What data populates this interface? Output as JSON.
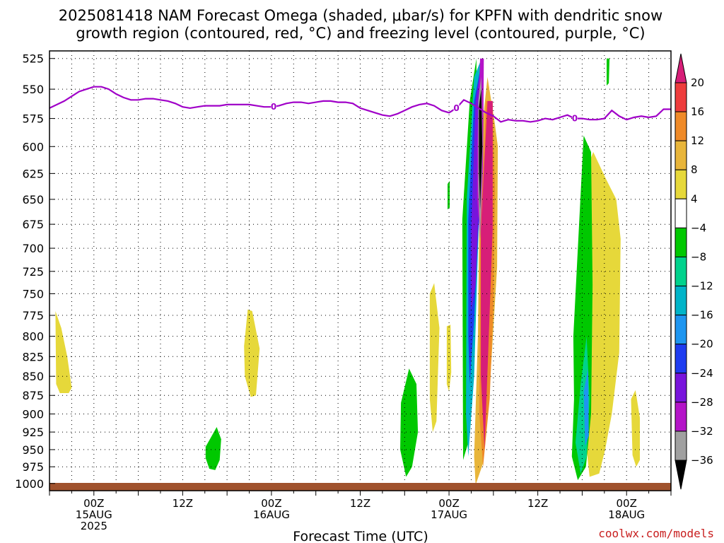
{
  "header": {
    "title_line1": "2025081418 NAM Forecast Omega (shaded, μbar/s) for KPFN with dendritic snow",
    "title_line2": "growth region (contoured, red, °C) and freezing level (contoured, purple, °C)"
  },
  "footer": {
    "watermark": "coolwx.com/models"
  },
  "chart_data": {
    "type": "heatmap",
    "title": "2025081418 NAM Forecast Omega (shaded, μbar/s) for KPFN with dendritic snow growth region (contoured, red, °C) and freezing level (contoured, purple, °C)",
    "xlabel": "Forecast Time (UTC)",
    "ylabel": "",
    "x_unit": "hours since 2025-08-14 18Z",
    "xlim": [
      0,
      84
    ],
    "y_ticks": [
      525,
      550,
      575,
      600,
      625,
      650,
      675,
      700,
      725,
      750,
      775,
      800,
      825,
      850,
      875,
      900,
      925,
      950,
      975,
      1000
    ],
    "ylim": [
      1000,
      525
    ],
    "x_ticks": [
      {
        "x": 6,
        "line1": "00Z",
        "line2": "15AUG",
        "line3": "2025"
      },
      {
        "x": 18,
        "line1": "12Z",
        "line2": "",
        "line3": ""
      },
      {
        "x": 30,
        "line1": "00Z",
        "line2": "16AUG",
        "line3": ""
      },
      {
        "x": 42,
        "line1": "12Z",
        "line2": "",
        "line3": ""
      },
      {
        "x": 54,
        "line1": "00Z",
        "line2": "17AUG",
        "line3": ""
      },
      {
        "x": 66,
        "line1": "12Z",
        "line2": "",
        "line3": ""
      },
      {
        "x": 78,
        "line1": "00Z",
        "line2": "18AUG",
        "line3": ""
      }
    ],
    "grid": true,
    "colorbar": {
      "labels": [
        "20",
        "16",
        "12",
        "8",
        "4",
        "−4",
        "−8",
        "−12",
        "−16",
        "−20",
        "−24",
        "−28",
        "−32",
        "−36"
      ],
      "colors": [
        "#d71e78",
        "#ee3c3c",
        "#ef8a28",
        "#e8b53a",
        "#e6d83a",
        "#ffffff",
        "#00c800",
        "#00d28c",
        "#00b4c8",
        "#1e96f0",
        "#1e3cf0",
        "#7814dc",
        "#b414c8",
        "#a0a0a0",
        "#000000"
      ]
    },
    "freezing_level": {
      "label": "0",
      "color": "#a000c8",
      "x": [
        0,
        1,
        2,
        3,
        4,
        5,
        6,
        7,
        8,
        9,
        10,
        11,
        12,
        13,
        14,
        15,
        16,
        17,
        18,
        19,
        20,
        21,
        22,
        23,
        24,
        25,
        26,
        27,
        28,
        29,
        30,
        31,
        32,
        33,
        34,
        35,
        36,
        37,
        38,
        39,
        40,
        41,
        42,
        43,
        44,
        45,
        46,
        47,
        48,
        49,
        50,
        51,
        52,
        53,
        54,
        55,
        56,
        57,
        58,
        59,
        60,
        61,
        62,
        63,
        64,
        65,
        66,
        67,
        68,
        69,
        70,
        71,
        72,
        73,
        74,
        75,
        76,
        77,
        78,
        79,
        80,
        81,
        82,
        83,
        84
      ],
      "p": [
        566,
        563,
        560,
        556,
        552,
        550,
        548,
        548,
        550,
        554,
        557,
        559,
        559,
        558,
        558,
        559,
        560,
        562,
        565,
        566,
        565,
        564,
        564,
        564,
        563,
        563,
        563,
        563,
        564,
        565,
        565,
        564,
        562,
        561,
        561,
        562,
        561,
        560,
        560,
        561,
        561,
        562,
        566,
        568,
        570,
        572,
        573,
        571,
        568,
        565,
        563,
        562,
        564,
        568,
        570,
        566,
        559,
        562,
        566,
        570,
        573,
        578,
        576,
        577,
        577,
        578,
        577,
        575,
        576,
        574,
        572,
        575,
        575,
        576,
        576,
        575,
        568,
        573,
        576,
        574,
        573,
        574,
        573,
        567,
        567
      ]
    },
    "omega_regions": [
      {
        "level": "4",
        "color": "#e6d83a",
        "x": [
          0.8,
          1.6,
          2.4,
          3.0,
          2.6,
          1.4,
          0.9
        ],
        "p": [
          770,
          790,
          825,
          865,
          872,
          872,
          860
        ]
      },
      {
        "level": "4",
        "color": "#e6d83a",
        "x": [
          26.8,
          27.4,
          28.4,
          27.9,
          27.2,
          26.4,
          26.3
        ],
        "p": [
          768,
          770,
          815,
          875,
          877,
          850,
          812
        ]
      },
      {
        "level": "4",
        "color": "#e6d83a",
        "x": [
          51.4,
          52.0,
          52.7,
          52.3,
          51.8,
          51.4
        ],
        "p": [
          750,
          738,
          790,
          910,
          925,
          880
        ]
      },
      {
        "level": "4",
        "color": "#e6d83a",
        "x": [
          53.7,
          54.2,
          54.3,
          54.0,
          53.7
        ],
        "p": [
          788,
          786,
          845,
          870,
          860
        ]
      },
      {
        "level": "4",
        "color": "#e6d83a",
        "x": [
          78.6,
          79.2,
          79.8,
          79.8,
          79.3,
          78.8
        ],
        "p": [
          880,
          868,
          905,
          965,
          975,
          958
        ]
      },
      {
        "level": "4",
        "color": "#e6d83a",
        "x": [
          72.3,
          73.5,
          75.2,
          76.6,
          77.2,
          77.0,
          76.0,
          75.1,
          74.3,
          73.0,
          72.5
        ],
        "p": [
          625,
          605,
          630,
          650,
          690,
          820,
          900,
          950,
          985,
          990,
          940
        ]
      },
      {
        "level": "-4",
        "color": "#00c800",
        "x": [
          21.1,
          22.6,
          23.2,
          23.0,
          22.4,
          21.6,
          21.1
        ],
        "p": [
          946,
          918,
          935,
          965,
          980,
          978,
          962
        ]
      },
      {
        "level": "-4",
        "color": "#00c800",
        "x": [
          47.5,
          48.6,
          49.6,
          49.8,
          49.0,
          48.2,
          47.4
        ],
        "p": [
          885,
          840,
          860,
          925,
          975,
          990,
          950
        ]
      },
      {
        "level": "-4",
        "color": "#00c800",
        "x": [
          53.8,
          54.1,
          54.1,
          53.8
        ],
        "p": [
          635,
          632,
          658,
          660
        ]
      },
      {
        "level": "-4",
        "color": "#00c800",
        "x": [
          55.8,
          56.8,
          57.7,
          57.8,
          57.2,
          56.6,
          55.9
        ],
        "p": [
          670,
          560,
          525,
          600,
          800,
          940,
          965
        ]
      },
      {
        "level": "-4",
        "color": "#00c800",
        "x": [
          70.8,
          72.2,
          73.2,
          73.4,
          73.2,
          72.5,
          71.4,
          70.6,
          70.9
        ],
        "p": [
          800,
          590,
          605,
          740,
          900,
          975,
          995,
          960,
          880
        ]
      },
      {
        "level": "-4",
        "color": "#00c800",
        "x": [
          75.3,
          75.7,
          75.6,
          75.3
        ],
        "p": [
          525,
          525,
          545,
          547
        ]
      },
      {
        "level": "-8",
        "color": "#00d28c",
        "x": [
          71.8,
          72.6,
          73.0,
          72.6,
          71.8,
          71.1
        ],
        "p": [
          860,
          800,
          880,
          960,
          985,
          940
        ]
      },
      {
        "level": "-16",
        "color": "#1e96f0",
        "x": [
          72.2,
          72.8,
          72.9,
          72.4
        ],
        "p": [
          870,
          840,
          930,
          945
        ]
      },
      {
        "level": "8",
        "color": "#e8b53a",
        "x": [
          58.2,
          59.2,
          60.2,
          60.6,
          60.5,
          59.6,
          58.6,
          57.6,
          57.4,
          57.9
        ],
        "p": [
          600,
          540,
          580,
          600,
          720,
          850,
          970,
          1002,
          960,
          800
        ]
      },
      {
        "level": "-12",
        "color": "#00b4c8",
        "x": [
          56.4,
          57.4,
          58.4,
          58.0,
          57.4,
          56.6,
          56.3
        ],
        "p": [
          650,
          540,
          525,
          680,
          850,
          960,
          900
        ]
      },
      {
        "level": "-24",
        "color": "#1e3cf0",
        "x": [
          56.6,
          57.4,
          58.5,
          58.1,
          57.4,
          56.8,
          56.6
        ],
        "p": [
          670,
          560,
          525,
          660,
          780,
          860,
          800
        ]
      },
      {
        "level": "-28",
        "color": "#7814dc",
        "x": [
          57.0,
          57.6,
          58.5,
          58.2,
          57.6,
          57.0
        ],
        "p": [
          680,
          560,
          525,
          620,
          740,
          770
        ]
      },
      {
        "level": "12",
        "color": "#ef8a28",
        "x": [
          58.2,
          59.0,
          59.9,
          60.2,
          60.0,
          59.5,
          58.6,
          58.1
        ],
        "p": [
          700,
          560,
          560,
          640,
          760,
          880,
          975,
          900
        ]
      },
      {
        "level": "20",
        "color": "#d71e78",
        "x": [
          58.3,
          59.2,
          59.9,
          59.9,
          59.3,
          58.8,
          58.3
        ],
        "p": [
          680,
          560,
          560,
          680,
          820,
          950,
          850
        ]
      },
      {
        "level": "-32",
        "color": "#b414c8",
        "x": [
          57.8,
          58.2,
          58.7,
          58.6,
          58.2,
          57.8
        ],
        "p": [
          600,
          525,
          525,
          620,
          690,
          650
        ]
      },
      {
        "level": "-36",
        "color": "#a0a0a0",
        "x": [
          57.95,
          58.35,
          58.55,
          58.2,
          57.95
        ],
        "p": [
          560,
          540,
          600,
          690,
          640
        ]
      },
      {
        "level": "-40",
        "color": "#000000",
        "x": [
          58.05,
          58.35,
          58.5,
          58.2,
          58.05
        ],
        "p": [
          565,
          550,
          600,
          660,
          620
        ]
      }
    ]
  }
}
